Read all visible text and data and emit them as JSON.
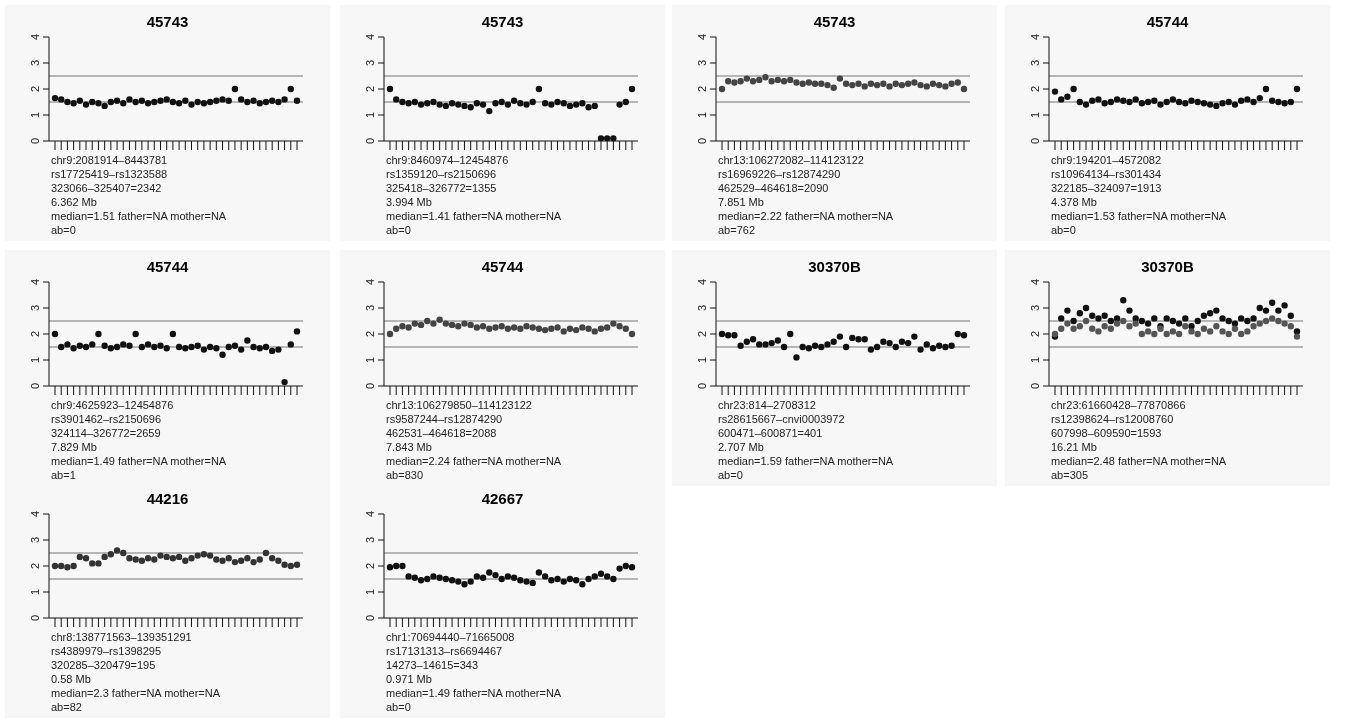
{
  "chart_data": [
    {
      "type": "scatter",
      "title": "45743",
      "categories": [
        null,
        null,
        null,
        null,
        null,
        null,
        null,
        null,
        null,
        null,
        null,
        null,
        null,
        null,
        null,
        null,
        null,
        null,
        null,
        null,
        null,
        null,
        null,
        null,
        null,
        null,
        null,
        null,
        null,
        null,
        null,
        null,
        null,
        null,
        null,
        null,
        null,
        null,
        null,
        null
      ],
      "series": [
        {
          "color": "#111111",
          "values": [
            1.65,
            1.6,
            1.5,
            1.45,
            1.55,
            1.4,
            1.5,
            1.45,
            1.35,
            1.5,
            1.55,
            1.45,
            1.6,
            1.5,
            1.55,
            1.45,
            1.5,
            1.55,
            1.6,
            1.5,
            1.45,
            1.55,
            1.4,
            1.5,
            1.45,
            1.5,
            1.55,
            1.6,
            1.55,
            2.0,
            1.6,
            1.5,
            1.55,
            1.45,
            1.5,
            1.55,
            1.5,
            1.6,
            2.0,
            1.55
          ]
        }
      ],
      "ylim": [
        0,
        4
      ],
      "yticks": [
        0,
        1,
        2,
        3,
        4
      ],
      "tick_labels": "y",
      "marker": "circle",
      "ref_lines": [
        {
          "axis": "y",
          "value": 1.5,
          "color": "#777777"
        },
        {
          "axis": "y",
          "value": 2.5,
          "color": "#777777"
        }
      ],
      "annotations": [
        "chr9:2081914–8443781",
        "rs17725419–rs1323588",
        "323066–325407=2342",
        "6.362 Mb",
        "median=1.51 father=NA mother=NA",
        "ab=0"
      ]
    },
    {
      "type": "scatter",
      "title": "45743",
      "categories": [
        null,
        null,
        null,
        null,
        null,
        null,
        null,
        null,
        null,
        null,
        null,
        null,
        null,
        null,
        null,
        null,
        null,
        null,
        null,
        null,
        null,
        null,
        null,
        null,
        null,
        null,
        null,
        null,
        null,
        null,
        null,
        null,
        null,
        null,
        null,
        null,
        null,
        null,
        null,
        null
      ],
      "series": [
        {
          "color": "#111111",
          "values": [
            2.0,
            1.6,
            1.5,
            1.45,
            1.5,
            1.4,
            1.45,
            1.5,
            1.4,
            1.35,
            1.45,
            1.4,
            1.35,
            1.3,
            1.45,
            1.4,
            1.15,
            1.45,
            1.5,
            1.4,
            1.55,
            1.45,
            1.4,
            1.5,
            2.0,
            1.45,
            1.4,
            1.5,
            1.45,
            1.35,
            1.4,
            1.45,
            1.3,
            1.35,
            0.1,
            0.1,
            0.1,
            1.4,
            1.5,
            2.0
          ]
        }
      ],
      "ylim": [
        0,
        4
      ],
      "yticks": [
        0,
        1,
        2,
        3,
        4
      ],
      "tick_labels": "y",
      "marker": "circle",
      "ref_lines": [
        {
          "axis": "y",
          "value": 1.5,
          "color": "#777777"
        },
        {
          "axis": "y",
          "value": 2.5,
          "color": "#777777"
        }
      ],
      "annotations": [
        "chr9:8460974–12454876",
        "rs1359120–rs2150696",
        "325418–326772=1355",
        "3.994 Mb",
        "median=1.41 father=NA mother=NA",
        "ab=0"
      ]
    },
    {
      "type": "scatter",
      "title": "45743",
      "categories": [
        null,
        null,
        null,
        null,
        null,
        null,
        null,
        null,
        null,
        null,
        null,
        null,
        null,
        null,
        null,
        null,
        null,
        null,
        null,
        null,
        null,
        null,
        null,
        null,
        null,
        null,
        null,
        null,
        null,
        null,
        null,
        null,
        null,
        null,
        null,
        null,
        null,
        null,
        null,
        null
      ],
      "series": [
        {
          "color": "#444444",
          "values": [
            2.0,
            2.3,
            2.25,
            2.3,
            2.4,
            2.3,
            2.35,
            2.45,
            2.3,
            2.35,
            2.3,
            2.35,
            2.25,
            2.2,
            2.25,
            2.2,
            2.2,
            2.15,
            2.05,
            2.4,
            2.2,
            2.15,
            2.2,
            2.1,
            2.2,
            2.15,
            2.2,
            2.1,
            2.2,
            2.15,
            2.2,
            2.25,
            2.15,
            2.1,
            2.2,
            2.15,
            2.1,
            2.2,
            2.25,
            2.0
          ]
        }
      ],
      "ylim": [
        0,
        4
      ],
      "yticks": [
        0,
        1,
        2,
        3,
        4
      ],
      "tick_labels": "y",
      "marker": "circle",
      "ref_lines": [
        {
          "axis": "y",
          "value": 1.5,
          "color": "#777777"
        },
        {
          "axis": "y",
          "value": 2.5,
          "color": "#777777"
        }
      ],
      "annotations": [
        "chr13:106272082–114123122",
        "rs16969226–rs12874290",
        "462529–464618=2090",
        "7.851 Mb",
        "median=2.22 father=NA mother=NA",
        "ab=762"
      ]
    },
    {
      "type": "scatter",
      "title": "45744",
      "categories": [
        null,
        null,
        null,
        null,
        null,
        null,
        null,
        null,
        null,
        null,
        null,
        null,
        null,
        null,
        null,
        null,
        null,
        null,
        null,
        null,
        null,
        null,
        null,
        null,
        null,
        null,
        null,
        null,
        null,
        null,
        null,
        null,
        null,
        null,
        null,
        null,
        null,
        null,
        null,
        null
      ],
      "series": [
        {
          "color": "#111111",
          "values": [
            1.9,
            1.6,
            1.7,
            2.0,
            1.5,
            1.4,
            1.55,
            1.6,
            1.45,
            1.5,
            1.6,
            1.55,
            1.5,
            1.6,
            1.45,
            1.5,
            1.55,
            1.4,
            1.5,
            1.6,
            1.5,
            1.45,
            1.55,
            1.5,
            1.45,
            1.4,
            1.35,
            1.45,
            1.5,
            1.4,
            1.55,
            1.6,
            1.5,
            1.65,
            2.0,
            1.55,
            1.5,
            1.45,
            1.5,
            2.0
          ]
        }
      ],
      "ylim": [
        0,
        4
      ],
      "yticks": [
        0,
        1,
        2,
        3,
        4
      ],
      "tick_labels": "y",
      "marker": "circle",
      "ref_lines": [
        {
          "axis": "y",
          "value": 1.5,
          "color": "#777777"
        },
        {
          "axis": "y",
          "value": 2.5,
          "color": "#777777"
        }
      ],
      "annotations": [
        "chr9:194201–4572082",
        "rs10964134–rs301434",
        "322185–324097=1913",
        "4.378 Mb",
        "median=1.53 father=NA mother=NA",
        "ab=0"
      ]
    },
    {
      "type": "scatter",
      "title": "45744",
      "categories": [
        null,
        null,
        null,
        null,
        null,
        null,
        null,
        null,
        null,
        null,
        null,
        null,
        null,
        null,
        null,
        null,
        null,
        null,
        null,
        null,
        null,
        null,
        null,
        null,
        null,
        null,
        null,
        null,
        null,
        null,
        null,
        null,
        null,
        null,
        null,
        null,
        null,
        null,
        null,
        null
      ],
      "series": [
        {
          "color": "#111111",
          "values": [
            2.0,
            1.5,
            1.6,
            1.45,
            1.55,
            1.5,
            1.6,
            2.0,
            1.55,
            1.45,
            1.5,
            1.6,
            1.55,
            2.0,
            1.5,
            1.6,
            1.5,
            1.55,
            1.45,
            2.0,
            1.5,
            1.45,
            1.5,
            1.55,
            1.4,
            1.5,
            1.45,
            1.2,
            1.5,
            1.55,
            1.4,
            1.75,
            1.5,
            1.45,
            1.5,
            1.35,
            1.4,
            0.15,
            1.6,
            2.1
          ]
        }
      ],
      "ylim": [
        0,
        4
      ],
      "yticks": [
        0,
        1,
        2,
        3,
        4
      ],
      "tick_labels": "y",
      "marker": "circle",
      "ref_lines": [
        {
          "axis": "y",
          "value": 1.5,
          "color": "#777777"
        },
        {
          "axis": "y",
          "value": 2.5,
          "color": "#777777"
        }
      ],
      "annotations": [
        "chr9:4625923–12454876",
        "rs3901462–rs2150696",
        "324114–326772=2659",
        "7.829 Mb",
        "median=1.49 father=NA mother=NA",
        "ab=1"
      ]
    },
    {
      "type": "scatter",
      "title": "45744",
      "categories": [
        null,
        null,
        null,
        null,
        null,
        null,
        null,
        null,
        null,
        null,
        null,
        null,
        null,
        null,
        null,
        null,
        null,
        null,
        null,
        null,
        null,
        null,
        null,
        null,
        null,
        null,
        null,
        null,
        null,
        null,
        null,
        null,
        null,
        null,
        null,
        null,
        null,
        null,
        null,
        null
      ],
      "series": [
        {
          "color": "#444444",
          "values": [
            2.0,
            2.2,
            2.3,
            2.25,
            2.4,
            2.35,
            2.5,
            2.4,
            2.55,
            2.4,
            2.35,
            2.3,
            2.4,
            2.35,
            2.25,
            2.3,
            2.2,
            2.25,
            2.3,
            2.2,
            2.25,
            2.2,
            2.3,
            2.25,
            2.2,
            2.15,
            2.2,
            2.25,
            2.1,
            2.2,
            2.15,
            2.25,
            2.2,
            2.1,
            2.2,
            2.25,
            2.4,
            2.3,
            2.2,
            2.0
          ]
        }
      ],
      "ylim": [
        0,
        4
      ],
      "yticks": [
        0,
        1,
        2,
        3,
        4
      ],
      "tick_labels": "y",
      "marker": "circle",
      "ref_lines": [
        {
          "axis": "y",
          "value": 1.5,
          "color": "#777777"
        },
        {
          "axis": "y",
          "value": 2.5,
          "color": "#777777"
        }
      ],
      "annotations": [
        "chr13:106279850–114123122",
        "rs9587244–rs12874290",
        "462531–464618=2088",
        "7.843 Mb",
        "median=2.24 father=NA mother=NA",
        "ab=830"
      ]
    },
    {
      "type": "scatter",
      "title": "30370B",
      "categories": [
        null,
        null,
        null,
        null,
        null,
        null,
        null,
        null,
        null,
        null,
        null,
        null,
        null,
        null,
        null,
        null,
        null,
        null,
        null,
        null,
        null,
        null,
        null,
        null,
        null,
        null,
        null,
        null,
        null,
        null,
        null,
        null,
        null,
        null,
        null,
        null,
        null,
        null,
        null,
        null
      ],
      "series": [
        {
          "color": "#111111",
          "values": [
            2.0,
            1.95,
            1.95,
            1.55,
            1.7,
            1.8,
            1.6,
            1.6,
            1.65,
            1.75,
            1.5,
            2.0,
            1.1,
            1.5,
            1.45,
            1.55,
            1.5,
            1.6,
            1.7,
            1.9,
            1.5,
            1.85,
            1.8,
            1.8,
            1.4,
            1.5,
            1.7,
            1.65,
            1.5,
            1.7,
            1.65,
            1.9,
            1.4,
            1.6,
            1.45,
            1.55,
            1.5,
            1.55,
            2.0,
            1.95
          ]
        }
      ],
      "ylim": [
        0,
        4
      ],
      "yticks": [
        0,
        1,
        2,
        3,
        4
      ],
      "tick_labels": "y",
      "marker": "circle",
      "ref_lines": [
        {
          "axis": "y",
          "value": 1.5,
          "color": "#777777"
        },
        {
          "axis": "y",
          "value": 2.5,
          "color": "#777777"
        }
      ],
      "annotations": [
        "chr23:814–2708312",
        "rs28615667–cnvi0003972",
        "600471–600871=401",
        "2.707 Mb",
        "median=1.59 father=NA mother=NA",
        "ab=0"
      ]
    },
    {
      "type": "scatter",
      "title": "30370B",
      "categories": [
        null,
        null,
        null,
        null,
        null,
        null,
        null,
        null,
        null,
        null,
        null,
        null,
        null,
        null,
        null,
        null,
        null,
        null,
        null,
        null,
        null,
        null,
        null,
        null,
        null,
        null,
        null,
        null,
        null,
        null,
        null,
        null,
        null,
        null,
        null,
        null,
        null,
        null,
        null,
        null
      ],
      "series": [
        {
          "color": "#111111",
          "values": [
            1.9,
            2.6,
            2.9,
            2.5,
            2.8,
            3.0,
            2.7,
            2.6,
            2.7,
            2.5,
            2.6,
            3.3,
            2.9,
            2.6,
            2.5,
            2.4,
            2.6,
            2.3,
            2.6,
            2.5,
            2.4,
            2.6,
            2.3,
            2.5,
            2.7,
            2.8,
            2.9,
            2.6,
            2.5,
            2.4,
            2.6,
            2.5,
            2.6,
            3.0,
            2.9,
            3.2,
            2.9,
            3.1,
            2.7,
            2.1
          ]
        },
        {
          "color": "#555555",
          "values": [
            2.0,
            2.2,
            2.4,
            2.2,
            2.3,
            2.5,
            2.2,
            2.1,
            2.3,
            2.2,
            2.4,
            2.5,
            2.3,
            2.4,
            2.0,
            2.1,
            2.0,
            2.2,
            2.0,
            2.1,
            2.0,
            2.3,
            2.1,
            2.0,
            2.2,
            2.1,
            2.3,
            2.1,
            2.0,
            2.2,
            2.0,
            2.1,
            2.3,
            2.4,
            2.5,
            2.6,
            2.5,
            2.4,
            2.3,
            1.9
          ]
        }
      ],
      "ylim": [
        0,
        4
      ],
      "yticks": [
        0,
        1,
        2,
        3,
        4
      ],
      "tick_labels": "y",
      "marker": "circle",
      "ref_lines": [
        {
          "axis": "y",
          "value": 1.5,
          "color": "#777777"
        },
        {
          "axis": "y",
          "value": 2.5,
          "color": "#777777"
        }
      ],
      "annotations": [
        "chr23:61660428–77870866",
        "rs12398624–rs12008760",
        "607998–609590=1593",
        "16.21 Mb",
        "median=2.48 father=NA mother=NA",
        "ab=305"
      ]
    },
    {
      "type": "scatter",
      "title": "44216",
      "categories": [
        null,
        null,
        null,
        null,
        null,
        null,
        null,
        null,
        null,
        null,
        null,
        null,
        null,
        null,
        null,
        null,
        null,
        null,
        null,
        null,
        null,
        null,
        null,
        null,
        null,
        null,
        null,
        null,
        null,
        null,
        null,
        null,
        null,
        null,
        null,
        null,
        null,
        null,
        null,
        null
      ],
      "series": [
        {
          "color": "#333333",
          "values": [
            2.0,
            2.0,
            1.95,
            2.0,
            2.35,
            2.3,
            2.1,
            2.1,
            2.35,
            2.45,
            2.6,
            2.5,
            2.3,
            2.25,
            2.2,
            2.3,
            2.25,
            2.4,
            2.35,
            2.3,
            2.35,
            2.2,
            2.3,
            2.4,
            2.45,
            2.4,
            2.25,
            2.2,
            2.3,
            2.15,
            2.2,
            2.3,
            2.15,
            2.25,
            2.5,
            2.3,
            2.2,
            2.05,
            2.0,
            2.05
          ]
        }
      ],
      "ylim": [
        0,
        4
      ],
      "yticks": [
        0,
        1,
        2,
        3,
        4
      ],
      "tick_labels": "y",
      "marker": "circle",
      "ref_lines": [
        {
          "axis": "y",
          "value": 1.5,
          "color": "#777777"
        },
        {
          "axis": "y",
          "value": 2.5,
          "color": "#777777"
        }
      ],
      "annotations": [
        "chr8:138771563–139351291",
        "rs4389979–rs1398295",
        "320285–320479=195",
        "0.58 Mb",
        "median=2.3 father=NA mother=NA",
        "ab=82"
      ]
    },
    {
      "type": "scatter",
      "title": "42667",
      "categories": [
        null,
        null,
        null,
        null,
        null,
        null,
        null,
        null,
        null,
        null,
        null,
        null,
        null,
        null,
        null,
        null,
        null,
        null,
        null,
        null,
        null,
        null,
        null,
        null,
        null,
        null,
        null,
        null,
        null,
        null,
        null,
        null,
        null,
        null,
        null,
        null,
        null,
        null,
        null,
        null
      ],
      "series": [
        {
          "color": "#111111",
          "values": [
            1.95,
            2.0,
            2.0,
            1.6,
            1.55,
            1.45,
            1.5,
            1.6,
            1.55,
            1.5,
            1.45,
            1.4,
            1.3,
            1.4,
            1.6,
            1.55,
            1.75,
            1.65,
            1.5,
            1.6,
            1.55,
            1.45,
            1.4,
            1.35,
            1.75,
            1.6,
            1.45,
            1.5,
            1.4,
            1.5,
            1.45,
            1.3,
            1.5,
            1.6,
            1.7,
            1.6,
            1.5,
            1.9,
            2.0,
            1.95
          ]
        }
      ],
      "ylim": [
        0,
        4
      ],
      "yticks": [
        0,
        1,
        2,
        3,
        4
      ],
      "tick_labels": "y",
      "marker": "circle",
      "ref_lines": [
        {
          "axis": "y",
          "value": 1.5,
          "color": "#777777"
        },
        {
          "axis": "y",
          "value": 2.5,
          "color": "#777777"
        }
      ],
      "annotations": [
        "chr1:70694440–71665008",
        "rs17131313–rs6694467",
        "14273–14615=343",
        "0.971 Mb",
        "median=1.49 father=NA mother=NA",
        "ab=0"
      ]
    }
  ]
}
